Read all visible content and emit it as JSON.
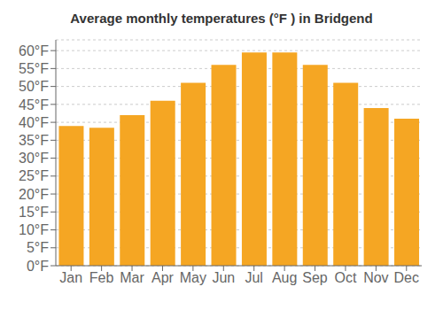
{
  "chart_data": {
    "type": "bar",
    "title": "Average monthly temperatures (°F ) in Bridgend",
    "categories": [
      "Jan",
      "Feb",
      "Mar",
      "Apr",
      "May",
      "Jun",
      "Jul",
      "Aug",
      "Sep",
      "Oct",
      "Nov",
      "Dec"
    ],
    "values": [
      39,
      38.5,
      42,
      46,
      51,
      56,
      59.5,
      59.5,
      56,
      51,
      44,
      41
    ],
    "color": "#F5A623",
    "ylim": [
      0,
      63
    ],
    "yticks": [
      {
        "value": 0,
        "label": "0°F"
      },
      {
        "value": 5,
        "label": "5°F"
      },
      {
        "value": 10,
        "label": "10°F"
      },
      {
        "value": 15,
        "label": "15°F"
      },
      {
        "value": 20,
        "label": "20°F"
      },
      {
        "value": 25,
        "label": "25°F"
      },
      {
        "value": 30,
        "label": "30°F"
      },
      {
        "value": 35,
        "label": "35°F"
      },
      {
        "value": 40,
        "label": "40°F"
      },
      {
        "value": 45,
        "label": "45°F"
      },
      {
        "value": 50,
        "label": "50°F"
      },
      {
        "value": 55,
        "label": "55°F"
      },
      {
        "value": 60,
        "label": "60°F"
      }
    ],
    "grid": true
  }
}
